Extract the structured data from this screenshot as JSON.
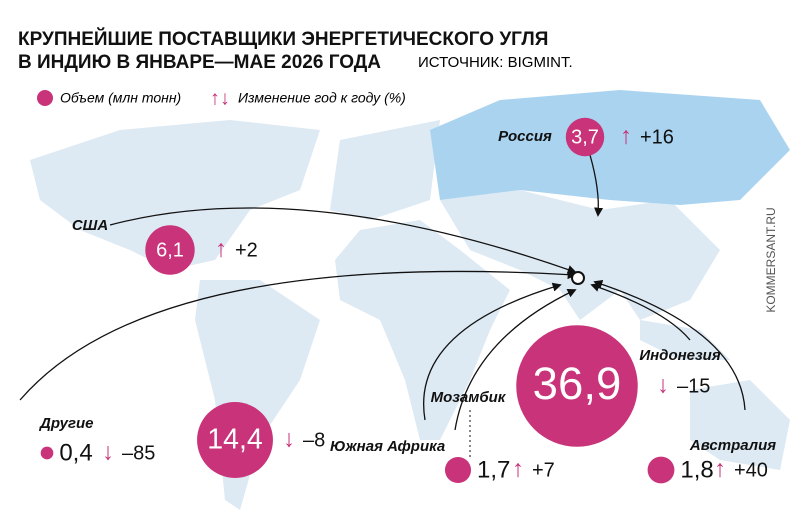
{
  "header": {
    "title_lines": [
      "КРУПНЕЙШИЕ ПОСТАВЩИКИ ЭНЕРГЕТИЧЕСКОГО УГЛЯ",
      "В ИНДИЮ В ЯНВАРЕ—МАЕ 2026 ГОДА"
    ],
    "source": "ИСТОЧНИК: BIGMINT."
  },
  "legend": {
    "volume": "Объем (млн тонн)",
    "change": "Изменение год к году (%)"
  },
  "suppliers": [
    {
      "name": "Россия",
      "volume": 3.7,
      "volume_label": "3,7",
      "change": 16,
      "change_label": "+16"
    },
    {
      "name": "США",
      "volume": 6.1,
      "volume_label": "6,1",
      "change": 2,
      "change_label": "+2"
    },
    {
      "name": "Другие",
      "volume": 0.4,
      "volume_label": "0,4",
      "change": -85,
      "change_label": "–85"
    },
    {
      "name": "Южная Африка",
      "volume": 14.4,
      "volume_label": "14,4",
      "change": -8,
      "change_label": "–8"
    },
    {
      "name": "Мозамбик",
      "volume": 1.7,
      "volume_label": "1,7",
      "change": 7,
      "change_label": "+7"
    },
    {
      "name": "Индонезия",
      "volume": 36.9,
      "volume_label": "36,9",
      "change": -15,
      "change_label": "–15"
    },
    {
      "name": "Австралия",
      "volume": 1.8,
      "volume_label": "1,8",
      "change": 40,
      "change_label": "+40"
    }
  ],
  "watermark": "KOMMERSANT.RU"
}
